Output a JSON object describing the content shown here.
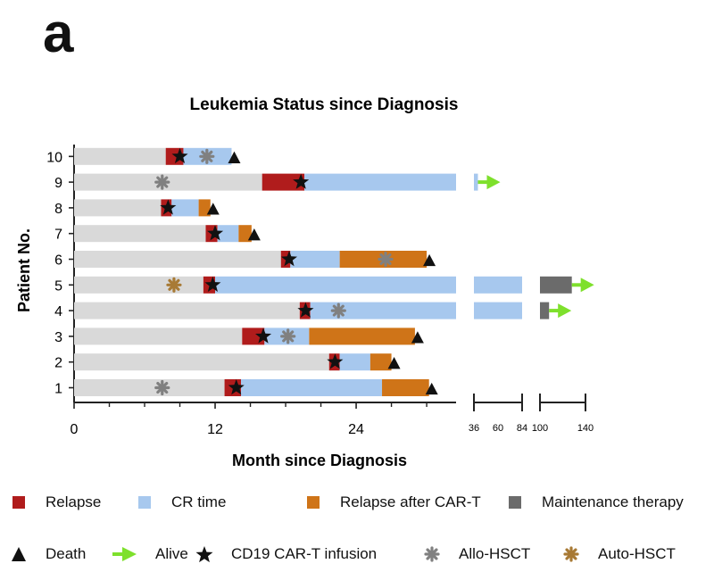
{
  "panel_label": "a",
  "chart_data": {
    "type": "bar",
    "subtype": "swimmer-plot",
    "title": "Leukemia Status since Diagnosis",
    "xlabel": "Month since Diagnosis",
    "ylabel": "Patient No.",
    "categories": [
      "1",
      "2",
      "3",
      "4",
      "5",
      "6",
      "7",
      "8",
      "9",
      "10"
    ],
    "x_axis": {
      "segments": [
        {
          "range": [
            0,
            32.5
          ],
          "ticks": [
            "0",
            "12",
            "24"
          ],
          "tick_values": [
            0,
            12,
            24
          ]
        },
        {
          "range": [
            36,
            84
          ],
          "ticks": [
            "36",
            "60",
            "84"
          ],
          "tick_values": [
            36,
            60,
            84
          ]
        },
        {
          "range": [
            100,
            140
          ],
          "ticks": [
            "100",
            "140"
          ],
          "tick_values": [
            100,
            140
          ]
        }
      ]
    },
    "grid": false,
    "colors": {
      "pre_diagnosis_bar": "#d9d9d9",
      "Relapse": "#b01c1c",
      "CR time": "#a7c8ee",
      "Relapse after CAR-T": "#cf7418",
      "Maintenance therapy": "#6b6b6b",
      "Death": "#111111",
      "Alive": "#7ee02c",
      "CD19 CAR-T infusion": "#111111",
      "Allo-HSCT": "#808080",
      "Auto-HSCT": "#a87a35"
    },
    "patients": [
      {
        "id": "1",
        "segments": [
          {
            "type": "pre",
            "start": 0,
            "end": 12.8
          },
          {
            "type": "Relapse",
            "start": 12.8,
            "end": 14.2
          },
          {
            "type": "CR time",
            "start": 14.2,
            "end": 26.2
          },
          {
            "type": "Relapse after CAR-T",
            "start": 26.2,
            "end": 30.2
          }
        ],
        "events": [
          {
            "type": "Allo-HSCT",
            "x": 7.5
          },
          {
            "type": "CD19 CAR-T infusion",
            "x": 13.8
          },
          {
            "type": "Death",
            "x": 30.2
          }
        ]
      },
      {
        "id": "2",
        "segments": [
          {
            "type": "pre",
            "start": 0,
            "end": 21.7
          },
          {
            "type": "Relapse",
            "start": 21.7,
            "end": 22.6
          },
          {
            "type": "CR time",
            "start": 22.6,
            "end": 25.2
          },
          {
            "type": "Relapse after CAR-T",
            "start": 25.2,
            "end": 27.0
          }
        ],
        "events": [
          {
            "type": "CD19 CAR-T infusion",
            "x": 22.2
          },
          {
            "type": "Death",
            "x": 27.0
          }
        ]
      },
      {
        "id": "3",
        "segments": [
          {
            "type": "pre",
            "start": 0,
            "end": 14.3
          },
          {
            "type": "Relapse",
            "start": 14.3,
            "end": 16.2
          },
          {
            "type": "CR time",
            "start": 16.2,
            "end": 20.0
          },
          {
            "type": "Relapse after CAR-T",
            "start": 20.0,
            "end": 29.0
          }
        ],
        "events": [
          {
            "type": "CD19 CAR-T infusion",
            "x": 16.1
          },
          {
            "type": "Allo-HSCT",
            "x": 18.2
          },
          {
            "type": "Death",
            "x": 29.0
          }
        ]
      },
      {
        "id": "4",
        "segments": [
          {
            "type": "pre",
            "start": 0,
            "end": 19.2
          },
          {
            "type": "Relapse",
            "start": 19.2,
            "end": 20.1
          },
          {
            "type": "CR time",
            "start": 20.1,
            "end": 32.5
          },
          {
            "type": "CR time",
            "start": 36,
            "end": 84
          },
          {
            "type": "Maintenance therapy",
            "start": 100,
            "end": 108
          }
        ],
        "events": [
          {
            "type": "CD19 CAR-T infusion",
            "x": 19.7
          },
          {
            "type": "Allo-HSCT",
            "x": 22.5
          },
          {
            "type": "Alive",
            "x": 108
          }
        ]
      },
      {
        "id": "5",
        "segments": [
          {
            "type": "pre",
            "start": 0,
            "end": 11.0
          },
          {
            "type": "Relapse",
            "start": 11.0,
            "end": 12.0
          },
          {
            "type": "CR time",
            "start": 12.0,
            "end": 32.5
          },
          {
            "type": "CR time",
            "start": 36,
            "end": 84
          },
          {
            "type": "Maintenance therapy",
            "start": 100,
            "end": 128
          }
        ],
        "events": [
          {
            "type": "Auto-HSCT",
            "x": 8.5
          },
          {
            "type": "CD19 CAR-T infusion",
            "x": 11.8
          },
          {
            "type": "Alive",
            "x": 128
          }
        ]
      },
      {
        "id": "6",
        "segments": [
          {
            "type": "pre",
            "start": 0,
            "end": 17.6
          },
          {
            "type": "Relapse",
            "start": 17.6,
            "end": 18.4
          },
          {
            "type": "CR time",
            "start": 18.4,
            "end": 22.6
          },
          {
            "type": "Relapse after CAR-T",
            "start": 22.6,
            "end": 30.0
          }
        ],
        "events": [
          {
            "type": "CD19 CAR-T infusion",
            "x": 18.3
          },
          {
            "type": "Allo-HSCT",
            "x": 26.5
          },
          {
            "type": "Death",
            "x": 30.0
          }
        ]
      },
      {
        "id": "7",
        "segments": [
          {
            "type": "pre",
            "start": 0,
            "end": 11.2
          },
          {
            "type": "Relapse",
            "start": 11.2,
            "end": 12.2
          },
          {
            "type": "CR time",
            "start": 12.2,
            "end": 14.0
          },
          {
            "type": "Relapse after CAR-T",
            "start": 14.0,
            "end": 15.1
          }
        ],
        "events": [
          {
            "type": "CD19 CAR-T infusion",
            "x": 12.0
          },
          {
            "type": "Death",
            "x": 15.1
          }
        ]
      },
      {
        "id": "8",
        "segments": [
          {
            "type": "pre",
            "start": 0,
            "end": 7.4
          },
          {
            "type": "Relapse",
            "start": 7.4,
            "end": 8.3
          },
          {
            "type": "CR time",
            "start": 8.3,
            "end": 10.6
          },
          {
            "type": "Relapse after CAR-T",
            "start": 10.6,
            "end": 11.6
          }
        ],
        "events": [
          {
            "type": "CD19 CAR-T infusion",
            "x": 8.0
          },
          {
            "type": "Death",
            "x": 11.6
          }
        ]
      },
      {
        "id": "9",
        "segments": [
          {
            "type": "pre",
            "start": 0,
            "end": 16.0
          },
          {
            "type": "Relapse",
            "start": 16.0,
            "end": 19.6
          },
          {
            "type": "CR time",
            "start": 19.6,
            "end": 32.5
          },
          {
            "type": "CR time",
            "start": 36,
            "end": 40
          }
        ],
        "events": [
          {
            "type": "Allo-HSCT",
            "x": 7.5
          },
          {
            "type": "CD19 CAR-T infusion",
            "x": 19.3
          },
          {
            "type": "Alive",
            "x": 40
          }
        ]
      },
      {
        "id": "10",
        "segments": [
          {
            "type": "pre",
            "start": 0,
            "end": 7.8
          },
          {
            "type": "Relapse",
            "start": 7.8,
            "end": 9.3
          },
          {
            "type": "CR time",
            "start": 9.3,
            "end": 13.4
          }
        ],
        "events": [
          {
            "type": "CD19 CAR-T infusion",
            "x": 9.0
          },
          {
            "type": "Allo-HSCT",
            "x": 11.3
          },
          {
            "type": "Death",
            "x": 13.4
          }
        ]
      }
    ],
    "legend": [
      {
        "label": "Relapse",
        "symbol": "square",
        "key": "Relapse"
      },
      {
        "label": "CR time",
        "symbol": "square",
        "key": "CR time"
      },
      {
        "label": "Relapse after CAR-T",
        "symbol": "square",
        "key": "Relapse after CAR-T"
      },
      {
        "label": "Maintenance therapy",
        "symbol": "square",
        "key": "Maintenance therapy"
      },
      {
        "label": "Death",
        "symbol": "triangle",
        "key": "Death"
      },
      {
        "label": "Alive",
        "symbol": "arrow",
        "key": "Alive"
      },
      {
        "label": "CD19 CAR-T infusion",
        "symbol": "star",
        "key": "CD19 CAR-T infusion"
      },
      {
        "label": "Allo-HSCT",
        "symbol": "asterisk",
        "key": "Allo-HSCT"
      },
      {
        "label": "Auto-HSCT",
        "symbol": "asterisk",
        "key": "Auto-HSCT"
      }
    ],
    "legend_placement": "bottom"
  }
}
